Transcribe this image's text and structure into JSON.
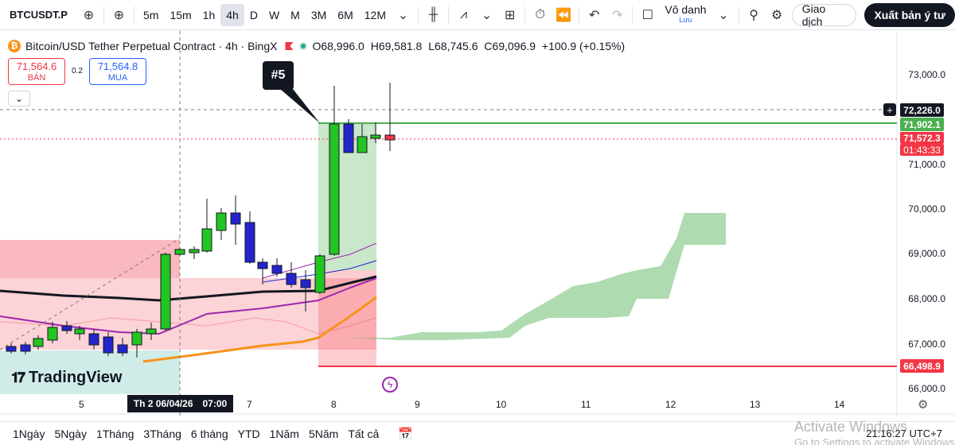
{
  "toolbar": {
    "symbol": "BTCUSDT.P",
    "timeframes": [
      "5m",
      "15m",
      "1h",
      "4h",
      "D",
      "W",
      "M",
      "3M",
      "6M",
      "12M"
    ],
    "active_timeframe": "4h",
    "save_title": "Vô danh",
    "save_sub": "Lưu",
    "trade_label": "Giao dịch",
    "publish_label": "Xuất bản ý tư"
  },
  "legend": {
    "title": "Bitcoin/USD Tether Perpetual Contract · 4h · BingX",
    "open": "O68,996.0",
    "high": "H69,581.8",
    "low": "L68,745.6",
    "close": "C69,096.9",
    "change": "+100.9 (+0.15%)"
  },
  "order_panel": {
    "sell_price": "71,564.6",
    "sell_label": "BÁN",
    "spread": "0.2",
    "buy_price": "71,564.8",
    "buy_label": "MUA"
  },
  "price_axis": {
    "ticks": [
      "73,000.0",
      "71,000.0",
      "70,000.0",
      "69,000.0",
      "68,000.0",
      "67,000.0",
      "66,000.0"
    ],
    "crosshair_price": "72,226.0",
    "target_price": "71,902.1",
    "current_price": "71,572.3",
    "countdown": "01:43:33",
    "stop_price": "66,498.9"
  },
  "time_axis": {
    "ticks": [
      "5",
      "7",
      "8",
      "9",
      "10",
      "11",
      "12",
      "13",
      "14"
    ],
    "crosshair_date": "Th 2 06/04/26",
    "crosshair_time": "07:00"
  },
  "annotations": {
    "callout": "#5",
    "logo": "TradingView"
  },
  "bottom_bar": {
    "ranges": [
      "1Ngày",
      "5Ngày",
      "1Tháng",
      "3Tháng",
      "6 tháng",
      "YTD",
      "1Năm",
      "5Năm",
      "Tất cả"
    ],
    "clock": "21:16:27 UTC+7"
  },
  "watermark": {
    "line1": "Activate Windows",
    "line2": "Go to Settings to activate Windows."
  },
  "colors": {
    "up": "#22c522",
    "down": "#2424cc",
    "target_line": "#4caf50",
    "stop_line": "#f23645",
    "ema": "#131722",
    "slow_ma": "#f7931a",
    "fast_ma": "#9c27b0"
  }
}
